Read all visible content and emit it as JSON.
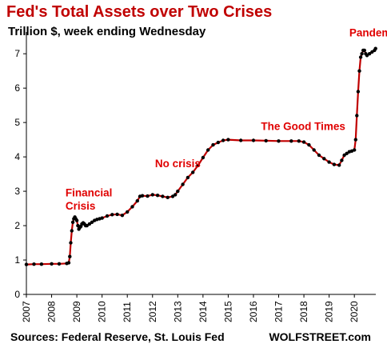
{
  "chart_data": {
    "type": "line",
    "title": "Fed's Total Assets over Two Crises",
    "subtitle": "Trillion $, week ending Wednesday",
    "xlabel": "",
    "ylabel": "",
    "x_ticks": [
      "2007",
      "2008",
      "2009",
      "2010",
      "2011",
      "2012",
      "2013",
      "2014",
      "2015",
      "2016",
      "2017",
      "2018",
      "2019",
      "2020"
    ],
    "y_ticks": [
      "0",
      "1",
      "2",
      "3",
      "4",
      "5",
      "6",
      "7"
    ],
    "xlim": [
      2007.0,
      2020.85
    ],
    "ylim": [
      0,
      7.4
    ],
    "grid": false,
    "line_color": "#c00000",
    "marker_color": "#000000",
    "series": [
      {
        "x": [
          2007.0,
          2007.3,
          2007.6,
          2008.0,
          2008.3,
          2008.6,
          2008.68,
          2008.72,
          2008.76,
          2008.8,
          2008.84,
          2008.88,
          2008.92,
          2008.96,
          2009.0,
          2009.04,
          2009.08,
          2009.12,
          2009.16,
          2009.2,
          2009.25,
          2009.3,
          2009.35,
          2009.4,
          2009.5,
          2009.6,
          2009.7,
          2009.8,
          2009.9,
          2010.0,
          2010.2,
          2010.4,
          2010.6,
          2010.8,
          2011.0,
          2011.2,
          2011.4,
          2011.5,
          2011.6,
          2011.8,
          2012.0,
          2012.2,
          2012.4,
          2012.6,
          2012.8,
          2012.9,
          2013.0,
          2013.2,
          2013.4,
          2013.6,
          2013.8,
          2014.0,
          2014.2,
          2014.4,
          2014.6,
          2014.8,
          2015.0,
          2015.5,
          2016.0,
          2016.5,
          2017.0,
          2017.5,
          2017.8,
          2018.0,
          2018.2,
          2018.4,
          2018.6,
          2018.8,
          2019.0,
          2019.2,
          2019.4,
          2019.5,
          2019.6,
          2019.7,
          2019.8,
          2019.9,
          2020.0,
          2020.05,
          2020.1,
          2020.15,
          2020.2,
          2020.25,
          2020.3,
          2020.35,
          2020.4,
          2020.45,
          2020.5,
          2020.6,
          2020.7,
          2020.8,
          2020.84
        ],
        "values": [
          0.87,
          0.88,
          0.88,
          0.89,
          0.89,
          0.9,
          0.92,
          1.1,
          1.5,
          1.85,
          2.1,
          2.2,
          2.25,
          2.2,
          2.15,
          2.0,
          1.9,
          1.95,
          1.98,
          2.05,
          2.08,
          2.05,
          2.0,
          2.0,
          2.05,
          2.1,
          2.15,
          2.18,
          2.2,
          2.22,
          2.28,
          2.32,
          2.33,
          2.3,
          2.4,
          2.55,
          2.72,
          2.85,
          2.87,
          2.86,
          2.9,
          2.88,
          2.85,
          2.82,
          2.85,
          2.9,
          3.0,
          3.2,
          3.4,
          3.55,
          3.75,
          3.98,
          4.2,
          4.35,
          4.42,
          4.48,
          4.5,
          4.48,
          4.48,
          4.47,
          4.46,
          4.46,
          4.46,
          4.43,
          4.35,
          4.2,
          4.05,
          3.95,
          3.85,
          3.78,
          3.76,
          3.9,
          4.05,
          4.1,
          4.15,
          4.17,
          4.2,
          4.5,
          5.2,
          5.9,
          6.5,
          6.9,
          7.0,
          7.1,
          7.1,
          7.0,
          6.95,
          7.0,
          7.05,
          7.1,
          7.15
        ]
      }
    ],
    "annotations": [
      {
        "text": "Financial",
        "x": 2008.55,
        "y": 2.85
      },
      {
        "text": "Crisis",
        "x": 2008.55,
        "y": 2.47
      },
      {
        "text": "No crisis",
        "x": 2012.1,
        "y": 3.7
      },
      {
        "text": "The Good Times",
        "x": 2016.3,
        "y": 4.78
      },
      {
        "text": "Pandemic",
        "x": 2019.8,
        "y": 7.5
      }
    ]
  },
  "footer": {
    "source": "Sources: Federal Reserve, St. Louis Fed",
    "brand": "WOLFSTREET.com"
  }
}
